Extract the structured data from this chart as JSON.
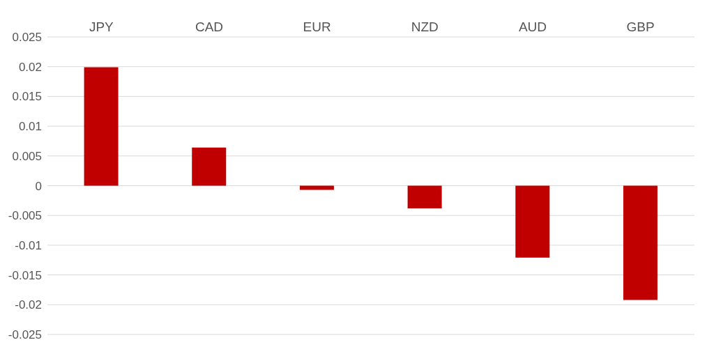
{
  "chart_data": {
    "type": "bar",
    "categories": [
      "JPY",
      "CAD",
      "EUR",
      "NZD",
      "AUD",
      "GBP"
    ],
    "values": [
      0.0199,
      0.0064,
      -0.0007,
      -0.0038,
      -0.0121,
      -0.0192
    ],
    "color": "#c00000",
    "ylim": [
      -0.025,
      0.025
    ],
    "yticks": [
      -0.025,
      -0.02,
      -0.015,
      -0.01,
      -0.005,
      0,
      0.005,
      0.01,
      0.015,
      0.02,
      0.025
    ],
    "grid": "y",
    "legend": false
  }
}
